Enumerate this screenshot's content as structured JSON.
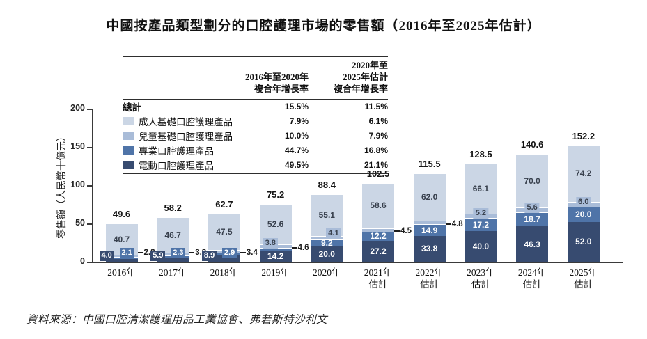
{
  "title": "中國按產品類型劃分的口腔護理市場的零售額（2016年至2025年估計）",
  "source": "資料來源：中國口腔清潔護理用品工業協會、弗若斯特沙利文",
  "y_axis": {
    "title": "零售額（人民幣十億元）",
    "ticks": [
      0,
      50,
      100,
      150,
      200
    ]
  },
  "colors": {
    "adult": "#cbd6e5",
    "children": "#a9bcd8",
    "professional": "#4f74a8",
    "electric": "#374b70",
    "axis": "#3a3a3a",
    "dark_text": "#38404d",
    "white_text": "#ffffff"
  },
  "legend": {
    "col1_header": "2016年至2020年\n複合年增長率",
    "col2_header": "2020年至\n2025年估計\n複合年增長率",
    "rows": [
      {
        "label": "總計",
        "swatch": "",
        "bold": true,
        "cagr1": "15.5%",
        "cagr2": "11.5%"
      },
      {
        "label": "成人基礎口腔護理產品",
        "swatch": "adult",
        "bold": false,
        "cagr1": "7.9%",
        "cagr2": "6.1%"
      },
      {
        "label": "兒童基礎口腔護理產品",
        "swatch": "children",
        "bold": false,
        "cagr1": "10.0%",
        "cagr2": "7.9%"
      },
      {
        "label": "專業口腔護理產品",
        "swatch": "professional",
        "bold": false,
        "cagr1": "44.7%",
        "cagr2": "16.8%"
      },
      {
        "label": "電動口腔護理產品",
        "swatch": "electric",
        "bold": false,
        "cagr1": "49.5%",
        "cagr2": "21.1%"
      }
    ]
  },
  "chart_data": {
    "type": "bar",
    "stacked": true,
    "title": "中國按產品類型劃分的口腔護理市場的零售額（2016年至2025年估計）",
    "ylabel": "零售額（人民幣十億元）",
    "xlabel": "",
    "ylim": [
      0,
      200
    ],
    "grid": false,
    "legend_position": "top-left-table",
    "categories": [
      "2016年",
      "2017年",
      "2018年",
      "2019年",
      "2020年",
      "2021年\n估計",
      "2022年\n估計",
      "2023年\n估計",
      "2024年\n估計",
      "2025年\n估計"
    ],
    "series": [
      {
        "name": "電動口腔護理產品",
        "key": "electric",
        "values": [
          4.0,
          5.9,
          8.9,
          14.2,
          20.0,
          27.2,
          33.8,
          40.0,
          46.3,
          52.0
        ]
      },
      {
        "name": "專業口腔護理產品",
        "key": "professional",
        "values": [
          2.1,
          2.3,
          2.9,
          3.8,
          9.2,
          12.2,
          14.9,
          17.2,
          18.7,
          20.0
        ]
      },
      {
        "name": "兒童基礎口腔護理產品",
        "key": "children",
        "values": [
          2.8,
          3.3,
          3.4,
          4.6,
          4.1,
          4.5,
          4.8,
          5.2,
          5.6,
          6.0
        ]
      },
      {
        "name": "成人基礎口腔護理產品",
        "key": "adult",
        "values": [
          40.7,
          46.7,
          47.5,
          52.6,
          55.1,
          58.6,
          62.0,
          66.1,
          70.0,
          74.2
        ]
      }
    ],
    "totals": [
      49.6,
      58.2,
      62.7,
      75.2,
      88.4,
      102.5,
      115.5,
      128.5,
      140.6,
      152.2
    ]
  },
  "annotations": {
    "electric_mode": [
      "chip",
      "chip",
      "chip",
      "inside",
      "inside",
      "inside",
      "inside",
      "inside",
      "inside",
      "inside"
    ],
    "professional_mode": [
      "chip",
      "chip",
      "chip",
      "lightchip",
      "inside",
      "inside",
      "inside",
      "inside",
      "inside",
      "inside"
    ],
    "children_mode": [
      "leader",
      "leader",
      "leader",
      "leader",
      "chip",
      "leader",
      "leader",
      "chip",
      "chip",
      "chip"
    ]
  }
}
